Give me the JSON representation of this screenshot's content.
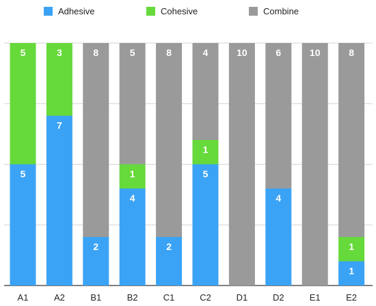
{
  "chart_data": {
    "type": "bar",
    "stacked": true,
    "categories": [
      "A1",
      "A2",
      "B1",
      "B2",
      "C1",
      "C2",
      "D1",
      "D2",
      "E1",
      "E2"
    ],
    "series": [
      {
        "name": "Adhesive",
        "color": "#3ba3f5",
        "values": [
          5,
          7,
          2,
          4,
          2,
          5,
          0,
          4,
          0,
          1
        ]
      },
      {
        "name": "Cohesive",
        "color": "#66d93b",
        "values": [
          5,
          3,
          0,
          1,
          0,
          1,
          0,
          0,
          0,
          1
        ]
      },
      {
        "name": "Combine",
        "color": "#9a9a9a",
        "values": [
          0,
          0,
          8,
          5,
          8,
          4,
          10,
          6,
          10,
          8
        ]
      }
    ],
    "ylim": [
      0,
      10
    ],
    "grid": true,
    "legend": "top"
  }
}
